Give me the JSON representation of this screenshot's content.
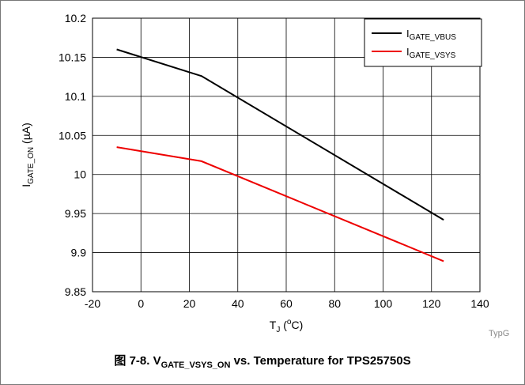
{
  "chart_data": {
    "type": "line",
    "ylabel": {
      "main": "I",
      "sub": "GATE_ON",
      "unit": " (µA)"
    },
    "xlabel": {
      "main": "T",
      "sub": "J",
      "unit_pre": " (",
      "sup": "o",
      "unit_post": "C)"
    },
    "xlim": [
      -20,
      140
    ],
    "ylim": [
      9.85,
      10.2
    ],
    "x_ticks": [
      "-20",
      "0",
      "20",
      "40",
      "60",
      "80",
      "100",
      "120",
      "140"
    ],
    "y_ticks": [
      "9.85",
      "9.9",
      "9.95",
      "10",
      "10.05",
      "10.1",
      "10.15",
      "10.2"
    ],
    "grid": true,
    "legend_position": "top-right",
    "series": [
      {
        "name_main": "I",
        "name_sub": "GATE_VBUS",
        "color": "#000000",
        "x": [
          -10,
          25,
          125
        ],
        "y": [
          10.16,
          10.126,
          9.942
        ]
      },
      {
        "name_main": "I",
        "name_sub": "GATE_VSYS",
        "color": "#ee0000",
        "x": [
          -10,
          25,
          125
        ],
        "y": [
          10.035,
          10.017,
          9.889
        ]
      }
    ]
  },
  "watermark": "TypG",
  "caption": {
    "prefix": "图 7-8. V",
    "sub": "GATE_VSYS_ON",
    "suffix": " vs. Temperature for TPS25750S"
  }
}
